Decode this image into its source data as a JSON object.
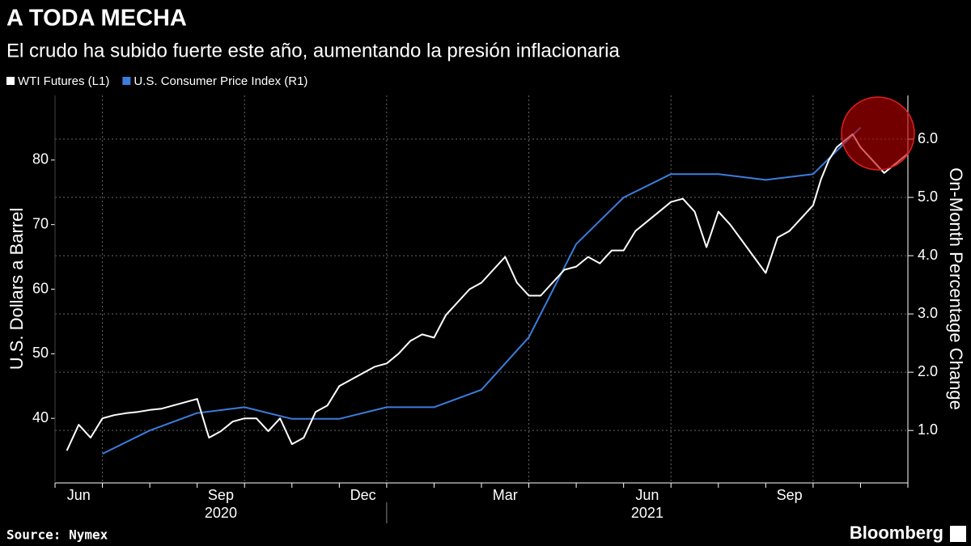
{
  "chart_data": {
    "type": "line",
    "title": "A TODA MECHA",
    "subtitle": "El crudo ha subido fuerte este año, aumentando la presión inflacionaria",
    "ylabel": "U.S. Dollars a Barrel",
    "y2label": "On-Month Percentage Change",
    "source": "Source: Nymex",
    "brand": "Bloomberg",
    "xlim": [
      "2020-06",
      "2021-11"
    ],
    "xticks": [
      {
        "value": "2020-06",
        "label": "Jun"
      },
      {
        "value": "2020-09",
        "label": "Sep"
      },
      {
        "value": "2020-12",
        "label": "Dec"
      },
      {
        "value": "2021-03",
        "label": "Mar"
      },
      {
        "value": "2021-06",
        "label": "Jun"
      },
      {
        "value": "2021-09",
        "label": "Sep"
      }
    ],
    "year_labels": [
      "2020",
      "2021"
    ],
    "ylim": [
      30,
      90
    ],
    "yticks": [
      40,
      50,
      60,
      70,
      80
    ],
    "y2lim": [
      0.1,
      6.75
    ],
    "y2ticks": [
      {
        "value": 1,
        "label": "1.0"
      },
      {
        "value": 2,
        "label": "2.0"
      },
      {
        "value": 3,
        "label": "3.0"
      },
      {
        "value": 4,
        "label": "4.0"
      },
      {
        "value": 5,
        "label": "5.0"
      },
      {
        "value": 6,
        "label": "6.0"
      }
    ],
    "grid": true,
    "series": [
      {
        "name": "WTI Futures (L1)",
        "color": "#ffffff",
        "x": [
          "2020-06",
          "2020-06",
          "2020-06",
          "2020-06",
          "2020-07",
          "2020-07",
          "2020-07",
          "2020-07",
          "2020-08",
          "2020-08",
          "2020-08",
          "2020-08",
          "2020-09",
          "2020-09",
          "2020-09",
          "2020-09",
          "2020-10",
          "2020-10",
          "2020-10",
          "2020-10",
          "2020-11",
          "2020-11",
          "2020-11",
          "2020-11",
          "2020-12",
          "2020-12",
          "2020-12",
          "2020-12",
          "2021-01",
          "2021-01",
          "2021-01",
          "2021-01",
          "2021-02",
          "2021-02",
          "2021-02",
          "2021-02",
          "2021-03",
          "2021-03",
          "2021-03",
          "2021-03",
          "2021-04",
          "2021-04",
          "2021-04",
          "2021-04",
          "2021-05",
          "2021-05",
          "2021-05",
          "2021-05",
          "2021-06",
          "2021-06",
          "2021-06",
          "2021-06",
          "2021-07",
          "2021-07",
          "2021-07",
          "2021-07",
          "2021-08",
          "2021-08",
          "2021-08",
          "2021-08",
          "2021-09",
          "2021-09",
          "2021-09",
          "2021-09",
          "2021-10",
          "2021-10",
          "2021-10",
          "2021-10",
          "2021-10",
          "2021-10",
          "2021-11",
          "2021-11"
        ],
        "values": [
          35,
          39,
          37,
          40,
          40.5,
          40.8,
          41,
          41.3,
          41.5,
          42,
          42.5,
          43,
          37,
          38,
          39.5,
          40,
          40,
          38,
          40,
          36,
          37,
          41,
          42,
          45,
          46,
          47,
          48,
          48.5,
          50,
          52,
          53,
          52.5,
          56,
          58,
          60,
          61,
          63,
          65,
          61,
          59,
          59,
          61,
          63,
          63.5,
          65,
          64,
          66,
          66,
          69,
          70.5,
          72,
          73.5,
          74,
          72,
          66.5,
          72,
          70,
          67.5,
          65,
          62.5,
          68,
          69,
          71,
          73,
          77,
          80,
          82,
          83,
          84,
          82,
          78,
          81
        ]
      },
      {
        "name": "U.S. Consumer Price Index (R1)",
        "color": "#3b7ddd",
        "axis": "y2",
        "x": [
          "2020-06",
          "2020-07",
          "2020-08",
          "2020-09",
          "2020-10",
          "2020-11",
          "2020-12",
          "2021-01",
          "2021-02",
          "2021-03",
          "2021-04",
          "2021-05",
          "2021-06",
          "2021-07",
          "2021-08",
          "2021-09",
          "2021-10"
        ],
        "values": [
          0.6,
          1.0,
          1.3,
          1.4,
          1.2,
          1.2,
          1.4,
          1.4,
          1.7,
          2.6,
          4.2,
          5.0,
          5.4,
          5.4,
          5.3,
          5.4,
          6.2
        ]
      }
    ]
  }
}
